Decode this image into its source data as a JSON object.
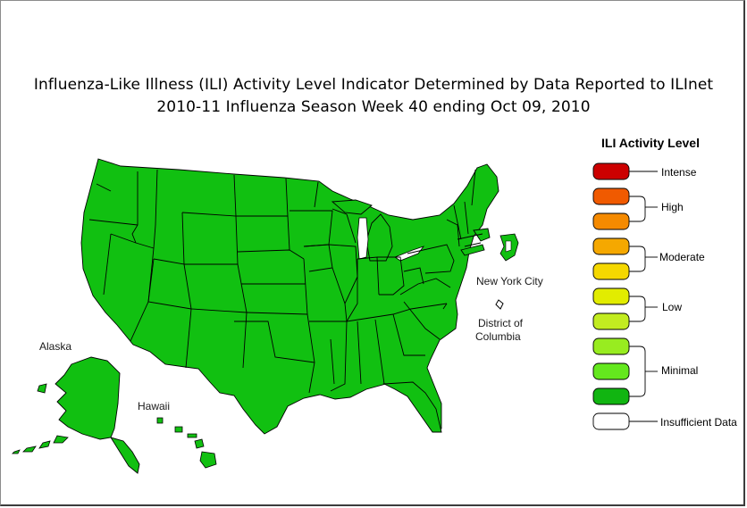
{
  "title": {
    "line1": "Influenza-Like Illness (ILI) Activity Level Indicator Determined by Data Reported to ILInet",
    "line2": "2010-11  Influenza Season Week  40 ending Oct 09, 2010"
  },
  "map_labels": {
    "alaska": "Alaska",
    "hawaii": "Hawaii",
    "new_york_city": "New York City",
    "dc_line1": "District of",
    "dc_line2": "Columbia"
  },
  "legend": {
    "title": "ILI Activity Level",
    "swatches": [
      {
        "level": "intense",
        "color": "#cc0000"
      },
      {
        "level": "high-10",
        "color": "#f05a00"
      },
      {
        "level": "high-9",
        "color": "#f58a00"
      },
      {
        "level": "moderate-8",
        "color": "#f5a800"
      },
      {
        "level": "moderate-7",
        "color": "#f5d800"
      },
      {
        "level": "low-6",
        "color": "#e2ec00"
      },
      {
        "level": "low-5",
        "color": "#c2ec20"
      },
      {
        "level": "minimal-4",
        "color": "#98ec20"
      },
      {
        "level": "minimal-3",
        "color": "#64e81e"
      },
      {
        "level": "minimal-2",
        "color": "#11b511"
      },
      {
        "level": "insufficient",
        "color": "#ffffff"
      }
    ],
    "labels": {
      "intense": "Intense",
      "high": "High",
      "moderate": "Moderate",
      "low": "Low",
      "minimal": "Minimal",
      "insufficient": "Insufficient Data"
    }
  },
  "colors": {
    "state_fill": "#11c011",
    "state_border": "#000000",
    "nyc_fill": "#ffffff",
    "dc_fill": "#ffffff"
  },
  "status": {
    "all_states_level": "Minimal",
    "new_york_city": "Insufficient Data",
    "district_of_columbia": "Insufficient Data"
  }
}
